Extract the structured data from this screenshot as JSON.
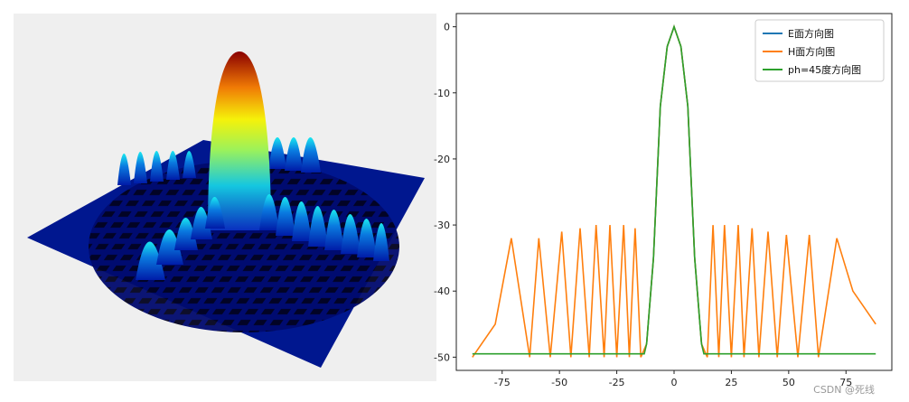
{
  "watermark": "CSDN @死线",
  "left_panel": {
    "type": "surface3d",
    "colormap": "jet"
  },
  "chart_data": {
    "type": "line",
    "xlim": [
      -95,
      95
    ],
    "ylim": [
      -52,
      2
    ],
    "xticks": [
      -75,
      -50,
      -25,
      0,
      25,
      50,
      75
    ],
    "yticks": [
      0,
      -10,
      -20,
      -30,
      -40,
      -50
    ],
    "grid": false,
    "legend_position": "top-right",
    "series": [
      {
        "name": "E面方向图",
        "color": "#1f77b4"
      },
      {
        "name": "H面方向图",
        "color": "#ff7f0e"
      },
      {
        "name": "ph=45度方向图",
        "color": "#2ca02c"
      }
    ],
    "main_lobe": {
      "x": [
        -12,
        -9,
        -6,
        -3,
        0,
        3,
        6,
        9,
        12
      ],
      "y": [
        -48,
        -35,
        -12,
        -3,
        0,
        -3,
        -12,
        -35,
        -48
      ]
    },
    "h_plane_sidelobes": {
      "x": [
        -71,
        -59,
        -49,
        -41,
        -34,
        -28,
        -22,
        -17,
        17,
        22,
        28,
        34,
        41,
        49,
        59,
        71
      ],
      "y": [
        -32,
        -32,
        -31,
        -30.5,
        -30,
        -30,
        -30,
        -30.5,
        -30,
        -30,
        -30,
        -30.5,
        -31,
        -31.5,
        -31.5,
        -32
      ]
    },
    "h_plane_nulls": [
      -63,
      -54,
      -45,
      -37,
      -30.5,
      -25,
      -19.5,
      -14.5,
      14.5,
      19.5,
      25,
      30.5,
      37,
      45,
      54,
      63
    ],
    "h_plane_ends": {
      "x": [
        -88,
        -78,
        78,
        88
      ],
      "y": [
        -50,
        -45,
        -40,
        -45
      ]
    },
    "ph45_floor": -49.5
  }
}
